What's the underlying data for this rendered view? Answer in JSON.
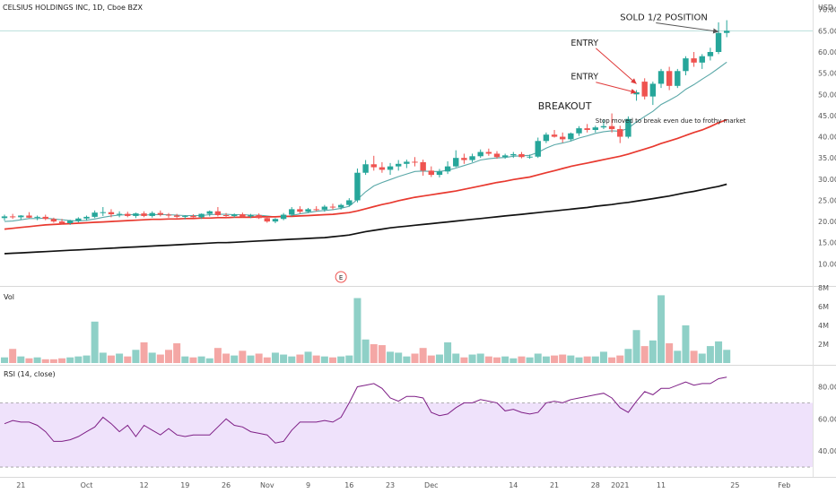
{
  "header": {
    "symbol_title": "CELSIUS HOLDINGS INC, 1D, Cboe BZX",
    "currency": "USD"
  },
  "chart_data": {
    "type": "candlestick",
    "price_axis": {
      "ylim": [
        5,
        71
      ],
      "ticks": [
        10,
        15,
        20,
        25,
        30,
        35,
        40,
        45,
        50,
        55,
        60,
        65,
        70
      ]
    },
    "x_axis": {
      "labels": [
        {
          "label": "21",
          "bar": 2
        },
        {
          "label": "Oct",
          "bar": 10
        },
        {
          "label": "12",
          "bar": 17
        },
        {
          "label": "19",
          "bar": 22
        },
        {
          "label": "26",
          "bar": 27
        },
        {
          "label": "Nov",
          "bar": 32
        },
        {
          "label": "9",
          "bar": 37
        },
        {
          "label": "16",
          "bar": 42
        },
        {
          "label": "23",
          "bar": 47
        },
        {
          "label": "Dec",
          "bar": 52
        },
        {
          "label": "14",
          "bar": 62
        },
        {
          "label": "21",
          "bar": 67
        },
        {
          "label": "28",
          "bar": 72
        },
        {
          "label": "2021",
          "bar": 75
        },
        {
          "label": "11",
          "bar": 80
        },
        {
          "label": "25",
          "bar": 89
        },
        {
          "label": "Feb",
          "bar": 95
        }
      ]
    },
    "last_price_line": 65.0,
    "candles": [
      [
        20.8,
        21.6,
        20.2,
        21.2
      ],
      [
        21.2,
        21.8,
        20.6,
        21.0
      ],
      [
        21.0,
        21.5,
        20.4,
        21.4
      ],
      [
        21.4,
        22.2,
        20.8,
        20.9
      ],
      [
        20.9,
        21.4,
        20.3,
        21.1
      ],
      [
        21.1,
        21.6,
        20.3,
        20.6
      ],
      [
        20.6,
        20.9,
        19.7,
        20.0
      ],
      [
        20.0,
        20.6,
        19.3,
        19.6
      ],
      [
        19.6,
        20.4,
        19.2,
        20.2
      ],
      [
        20.2,
        21.0,
        19.8,
        20.7
      ],
      [
        20.7,
        21.4,
        20.2,
        21.1
      ],
      [
        21.1,
        22.6,
        20.8,
        22.1
      ],
      [
        22.1,
        23.4,
        21.3,
        22.2
      ],
      [
        22.2,
        22.9,
        21.0,
        21.7
      ],
      [
        21.7,
        22.4,
        21.0,
        21.8
      ],
      [
        21.8,
        22.3,
        21.0,
        21.3
      ],
      [
        21.3,
        22.1,
        20.8,
        21.9
      ],
      [
        21.9,
        22.4,
        21.0,
        21.3
      ],
      [
        21.3,
        22.4,
        20.9,
        22.0
      ],
      [
        22.0,
        22.6,
        21.2,
        21.6
      ],
      [
        21.6,
        22.0,
        20.9,
        21.4
      ],
      [
        21.4,
        21.8,
        20.8,
        21.1
      ],
      [
        21.1,
        21.5,
        20.5,
        21.3
      ],
      [
        21.3,
        21.7,
        20.9,
        21.0
      ],
      [
        21.0,
        21.9,
        20.6,
        21.8
      ],
      [
        21.8,
        22.6,
        21.2,
        22.4
      ],
      [
        22.4,
        23.4,
        21.2,
        21.5
      ],
      [
        21.5,
        22.0,
        20.9,
        21.3
      ],
      [
        21.3,
        21.9,
        20.9,
        21.7
      ],
      [
        21.7,
        22.1,
        21.0,
        21.2
      ],
      [
        21.2,
        21.8,
        20.8,
        21.5
      ],
      [
        21.5,
        21.9,
        20.6,
        20.8
      ],
      [
        20.8,
        21.2,
        19.7,
        20.0
      ],
      [
        20.0,
        20.8,
        19.6,
        20.6
      ],
      [
        20.6,
        22.0,
        20.3,
        21.6
      ],
      [
        21.6,
        23.4,
        21.2,
        22.9
      ],
      [
        22.9,
        23.6,
        21.9,
        22.3
      ],
      [
        22.3,
        23.2,
        22.0,
        22.9
      ],
      [
        22.9,
        23.6,
        22.4,
        22.8
      ],
      [
        22.8,
        23.9,
        22.3,
        23.5
      ],
      [
        23.5,
        24.2,
        22.8,
        23.3
      ],
      [
        23.3,
        24.2,
        22.8,
        23.9
      ],
      [
        23.9,
        25.5,
        23.5,
        25.0
      ],
      [
        25.0,
        32.5,
        24.5,
        31.5
      ],
      [
        31.5,
        34.5,
        31.0,
        33.5
      ],
      [
        33.5,
        35.5,
        32.0,
        32.8
      ],
      [
        32.8,
        34.0,
        31.5,
        32.2
      ],
      [
        32.2,
        33.8,
        31.0,
        33.0
      ],
      [
        33.0,
        34.5,
        32.0,
        33.6
      ],
      [
        33.6,
        34.6,
        32.6,
        34.1
      ],
      [
        34.1,
        35.2,
        33.0,
        34.0
      ],
      [
        34.0,
        34.6,
        30.8,
        32.0
      ],
      [
        32.0,
        33.0,
        30.5,
        31.0
      ],
      [
        31.0,
        32.4,
        30.4,
        31.8
      ],
      [
        31.8,
        34.2,
        31.2,
        33.0
      ],
      [
        33.0,
        36.8,
        32.8,
        35.0
      ],
      [
        35.0,
        36.0,
        33.6,
        34.5
      ],
      [
        34.5,
        36.0,
        34.0,
        35.4
      ],
      [
        35.4,
        37.0,
        35.0,
        36.4
      ],
      [
        36.4,
        37.2,
        35.5,
        36.0
      ],
      [
        36.0,
        36.6,
        34.8,
        35.2
      ],
      [
        35.2,
        36.0,
        34.8,
        35.6
      ],
      [
        35.6,
        36.4,
        35.0,
        35.9
      ],
      [
        35.9,
        36.4,
        34.9,
        35.2
      ],
      [
        35.2,
        35.8,
        34.8,
        35.3
      ],
      [
        35.3,
        39.8,
        35.0,
        39.0
      ],
      [
        39.0,
        41.0,
        38.5,
        40.5
      ],
      [
        40.5,
        41.6,
        39.8,
        40.0
      ],
      [
        40.0,
        41.0,
        38.6,
        39.4
      ],
      [
        39.4,
        41.0,
        39.0,
        40.8
      ],
      [
        40.8,
        42.5,
        40.2,
        42.0
      ],
      [
        42.0,
        43.0,
        41.0,
        41.6
      ],
      [
        41.6,
        42.6,
        41.0,
        42.2
      ],
      [
        42.2,
        44.0,
        41.8,
        42.5
      ],
      [
        42.5,
        45.5,
        41.0,
        41.8
      ],
      [
        41.8,
        42.6,
        38.5,
        40.0
      ],
      [
        40.0,
        44.8,
        39.6,
        44.2
      ],
      [
        50.0,
        51.0,
        48.5,
        50.5
      ],
      [
        53.0,
        53.8,
        48.8,
        49.5
      ],
      [
        49.5,
        53.0,
        47.5,
        52.5
      ],
      [
        52.5,
        56.0,
        51.5,
        55.5
      ],
      [
        55.5,
        56.5,
        51.0,
        52.0
      ],
      [
        52.0,
        56.0,
        51.5,
        55.5
      ],
      [
        55.5,
        59.0,
        54.5,
        58.5
      ],
      [
        58.5,
        60.0,
        56.5,
        57.5
      ],
      [
        57.5,
        59.5,
        56.0,
        59.0
      ],
      [
        59.0,
        61.0,
        58.0,
        60.0
      ],
      [
        60.0,
        67.0,
        59.5,
        64.5
      ],
      [
        64.5,
        67.5,
        63.5,
        65.0
      ]
    ],
    "ma_lines": [
      {
        "name": "",
        "color": "#5aa8a8",
        "values": [
          20.0,
          20.1,
          20.4,
          20.7,
          20.7,
          20.8,
          20.6,
          20.4,
          20.2,
          20.1,
          20.3,
          20.6,
          21.0,
          21.3,
          21.5,
          21.6,
          21.6,
          21.5,
          21.6,
          21.6,
          21.6,
          21.5,
          21.4,
          21.4,
          21.4,
          21.6,
          21.7,
          21.7,
          21.6,
          21.6,
          21.5,
          21.5,
          21.3,
          21.1,
          21.1,
          21.4,
          21.8,
          22.1,
          22.4,
          22.6,
          22.8,
          23.1,
          23.6,
          25.2,
          27.0,
          28.4,
          29.2,
          29.9,
          30.6,
          31.2,
          31.8,
          31.9,
          31.8,
          31.8,
          32.1,
          32.6,
          33.2,
          33.8,
          34.5,
          34.8,
          35.0,
          35.1,
          35.4,
          35.5,
          35.6,
          36.3,
          37.3,
          38.1,
          38.5,
          39.0,
          39.7,
          40.2,
          40.8,
          41.2,
          41.4,
          41.3,
          42.0,
          43.5,
          44.8,
          46.0,
          47.6,
          48.6,
          49.7,
          51.2,
          52.3,
          53.6,
          54.8,
          56.2,
          57.6
        ]
      },
      {
        "name": "",
        "color": "#e8392f",
        "values": [
          18.2,
          18.4,
          18.6,
          18.8,
          19.0,
          19.2,
          19.3,
          19.4,
          19.5,
          19.6,
          19.7,
          19.8,
          19.9,
          20.0,
          20.1,
          20.2,
          20.3,
          20.4,
          20.5,
          20.5,
          20.6,
          20.6,
          20.7,
          20.7,
          20.8,
          20.8,
          20.9,
          20.9,
          21.0,
          21.0,
          21.0,
          21.1,
          21.1,
          21.1,
          21.2,
          21.2,
          21.3,
          21.4,
          21.5,
          21.6,
          21.7,
          21.9,
          22.1,
          22.5,
          23.0,
          23.5,
          24.0,
          24.4,
          24.9,
          25.3,
          25.7,
          26.0,
          26.3,
          26.6,
          26.9,
          27.2,
          27.6,
          28.0,
          28.4,
          28.8,
          29.2,
          29.5,
          29.9,
          30.2,
          30.5,
          31.0,
          31.5,
          32.0,
          32.5,
          33.0,
          33.4,
          33.8,
          34.2,
          34.6,
          35.0,
          35.4,
          35.9,
          36.5,
          37.1,
          37.7,
          38.4,
          39.0,
          39.6,
          40.3,
          41.0,
          41.6,
          42.4,
          43.3,
          44.0
        ]
      },
      {
        "name": "",
        "color": "#111111",
        "values": [
          12.4,
          12.5,
          12.6,
          12.7,
          12.8,
          12.9,
          13.0,
          13.1,
          13.2,
          13.3,
          13.4,
          13.5,
          13.6,
          13.7,
          13.8,
          13.9,
          14.0,
          14.1,
          14.2,
          14.3,
          14.4,
          14.5,
          14.6,
          14.7,
          14.8,
          14.9,
          15.0,
          15.0,
          15.1,
          15.2,
          15.3,
          15.4,
          15.5,
          15.6,
          15.7,
          15.8,
          15.9,
          16.0,
          16.1,
          16.2,
          16.4,
          16.6,
          16.8,
          17.2,
          17.6,
          17.9,
          18.2,
          18.5,
          18.7,
          18.9,
          19.1,
          19.3,
          19.5,
          19.7,
          19.9,
          20.1,
          20.3,
          20.5,
          20.7,
          20.9,
          21.1,
          21.3,
          21.5,
          21.7,
          21.9,
          22.1,
          22.3,
          22.5,
          22.7,
          22.9,
          23.1,
          23.3,
          23.6,
          23.8,
          24.0,
          24.3,
          24.5,
          24.8,
          25.1,
          25.4,
          25.7,
          26.0,
          26.4,
          26.8,
          27.1,
          27.5,
          27.9,
          28.3,
          28.8
        ]
      }
    ],
    "annotations": [
      {
        "text": "SOLD 1/2 POSITION",
        "price": 67.5,
        "bar": 75,
        "size": 10,
        "arrow_to": [
          87,
          64.8
        ]
      },
      {
        "text": "ENTRY",
        "price": 61.5,
        "bar": 69,
        "size": 9.5,
        "arrow_to": [
          77,
          52.5
        ]
      },
      {
        "text": "ENTRY",
        "price": 53.5,
        "bar": 69,
        "size": 9.5,
        "arrow_to": [
          77,
          50.4
        ]
      },
      {
        "text": "BREAKOUT",
        "price": 46.5,
        "bar": 65,
        "size": 11,
        "arrow_to": null
      },
      {
        "text": "Stop moved to break even due to frothy market",
        "price": 43.3,
        "bar": 72,
        "size": 7,
        "arrow_to": null
      }
    ],
    "earnings_marker": {
      "text": "E",
      "bar": 41
    },
    "volume": {
      "label": "Vol",
      "ylim": [
        0,
        8
      ],
      "ticks": [
        {
          "value": 2,
          "label": "2M"
        },
        {
          "value": 4,
          "label": "4M"
        },
        {
          "value": 6,
          "label": "6M"
        },
        {
          "value": 8,
          "label": "8M"
        }
      ],
      "values": [
        0.6,
        1.5,
        0.7,
        0.5,
        0.6,
        0.4,
        0.4,
        0.5,
        0.6,
        0.7,
        0.8,
        4.4,
        1.1,
        0.8,
        1.0,
        0.7,
        1.4,
        2.2,
        1.1,
        0.9,
        1.4,
        2.1,
        0.7,
        0.6,
        0.7,
        0.5,
        1.6,
        1.0,
        0.8,
        1.3,
        0.8,
        1.0,
        0.6,
        1.1,
        0.9,
        0.7,
        0.9,
        1.2,
        0.8,
        0.7,
        0.6,
        0.7,
        0.8,
        6.9,
        2.5,
        2.0,
        1.9,
        1.2,
        1.1,
        0.7,
        1.0,
        1.6,
        0.8,
        0.9,
        2.2,
        1.0,
        0.6,
        0.9,
        1.0,
        0.7,
        0.6,
        0.7,
        0.5,
        0.7,
        0.6,
        1.0,
        0.7,
        0.8,
        0.9,
        0.8,
        0.6,
        0.7,
        0.7,
        1.2,
        0.6,
        0.8,
        1.5,
        3.5,
        1.8,
        2.4,
        7.2,
        2.1,
        1.3,
        4.0,
        1.3,
        1.0,
        1.8,
        2.3,
        1.4
      ]
    },
    "rsi": {
      "label": "RSI (14, close)",
      "ylim": [
        25,
        92
      ],
      "band": [
        30,
        70
      ],
      "ticks": [
        {
          "value": 40,
          "label": "40.00"
        },
        {
          "value": 60,
          "label": "60.00"
        },
        {
          "value": 80,
          "label": "80.00"
        }
      ],
      "values": [
        57,
        59,
        58,
        58,
        56,
        52,
        46,
        46,
        47,
        49,
        52,
        55,
        61,
        57,
        52,
        56,
        49,
        56,
        53,
        50,
        54,
        50,
        49,
        50,
        50,
        50,
        55,
        60,
        56,
        55,
        52,
        51,
        50,
        45,
        46,
        53,
        58,
        58,
        58,
        59,
        58,
        61,
        70,
        80,
        81,
        82,
        79,
        73,
        71,
        74,
        74,
        73,
        64,
        62,
        63,
        67,
        70,
        70,
        72,
        71,
        70,
        65,
        66,
        64,
        63,
        64,
        70,
        71,
        70,
        72,
        73,
        74,
        75,
        76,
        73,
        67,
        64,
        71,
        77,
        75,
        79,
        79,
        81,
        83,
        81,
        82,
        82,
        85,
        86
      ]
    }
  }
}
